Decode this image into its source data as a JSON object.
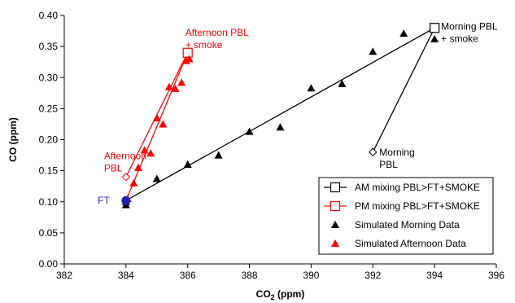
{
  "chart_data": {
    "type": "scatter",
    "xlabel": "CO",
    "xlabel_sub": "2",
    "xlabel_unit": " (ppm)",
    "ylabel": "CO (ppm)",
    "xlim": [
      382,
      396
    ],
    "ylim": [
      0.0,
      0.4
    ],
    "xticks": [
      382,
      384,
      386,
      388,
      390,
      392,
      394,
      396
    ],
    "yticks": [
      0.0,
      0.05,
      0.1,
      0.15,
      0.2,
      0.25,
      0.3,
      0.35,
      0.4
    ],
    "ytick_labels": [
      "0.00",
      "0.05",
      "0.10",
      "0.15",
      "0.20",
      "0.25",
      "0.30",
      "0.35",
      "0.40"
    ],
    "grid": false,
    "legend_position": "bottom-right",
    "series": [
      {
        "name": "AM mixing PBL>FT+SMOKE",
        "kind": "mixing-lines",
        "color": "#000000",
        "marker": "square-open",
        "ft": [
          384.0,
          0.102
        ],
        "smoke": [
          394.0,
          0.38
        ],
        "pbl": [
          392.0,
          0.18
        ]
      },
      {
        "name": "PM mixing PBL>FT+SMOKE",
        "kind": "mixing-lines",
        "color": "#ff0000",
        "marker": "square-open",
        "ft": [
          384.0,
          0.102
        ],
        "smoke": [
          386.0,
          0.34
        ],
        "pbl": [
          384.0,
          0.14
        ]
      },
      {
        "name": "Simulated Morning Data",
        "kind": "points",
        "color": "#000000",
        "marker": "triangle",
        "x": [
          384.0,
          384.0,
          385.0,
          386.0,
          387.0,
          388.0,
          389.0,
          390.0,
          391.0,
          392.0,
          393.0,
          394.0
        ],
        "y": [
          0.095,
          0.1,
          0.137,
          0.16,
          0.175,
          0.213,
          0.22,
          0.283,
          0.29,
          0.342,
          0.371,
          0.362
        ]
      },
      {
        "name": "Simulated Afternoon Data",
        "kind": "points",
        "color": "#ff0000",
        "marker": "triangle",
        "x": [
          384.05,
          384.25,
          384.4,
          384.6,
          384.8,
          385.0,
          385.2,
          385.4,
          385.6,
          385.8,
          385.95,
          386.05
        ],
        "y": [
          0.105,
          0.13,
          0.155,
          0.183,
          0.178,
          0.235,
          0.225,
          0.285,
          0.282,
          0.292,
          0.327,
          0.33
        ]
      }
    ],
    "ft_point": {
      "label": "FT",
      "x": 384.0,
      "y": 0.102,
      "color": "#1f1fb4"
    },
    "annotations": [
      {
        "text": [
          "Morning PBL",
          "+ smoke"
        ],
        "x": 394.0,
        "y": 0.38,
        "color": "#000000"
      },
      {
        "text": [
          "Morning",
          "PBL"
        ],
        "x": 392.0,
        "y": 0.18,
        "color": "#000000"
      },
      {
        "text": [
          "Afternoon PBL",
          "+ smoke"
        ],
        "x": 386.0,
        "y": 0.34,
        "color": "#ff0000"
      },
      {
        "text": [
          "Afternoon",
          "PBL"
        ],
        "x": 384.0,
        "y": 0.14,
        "color": "#ff0000"
      },
      {
        "text": [
          "FT"
        ],
        "x": 384.0,
        "y": 0.102,
        "color": "#1f1fb4"
      }
    ]
  }
}
